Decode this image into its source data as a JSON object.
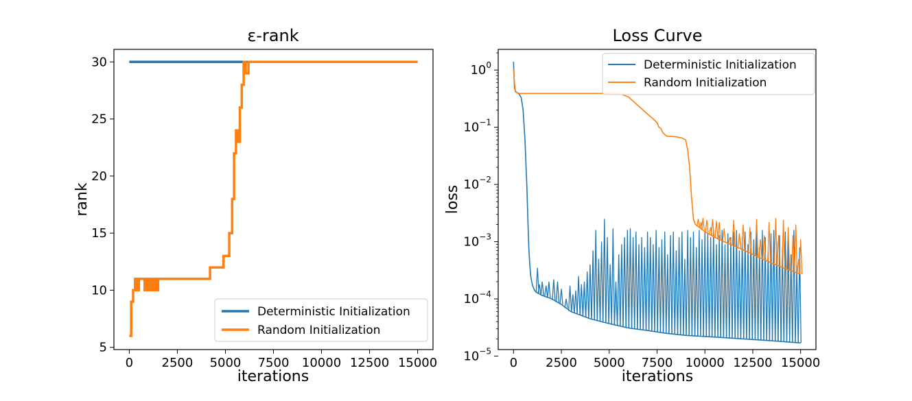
{
  "chart_data": [
    {
      "type": "line",
      "title": "ε-rank",
      "xlabel": "iterations",
      "ylabel": "rank",
      "xlim": [
        -800,
        15800
      ],
      "ylim": [
        4.8,
        31.1
      ],
      "xticks": [
        0,
        2500,
        5000,
        7500,
        10000,
        12500,
        15000
      ],
      "xtick_labels": [
        "0",
        "2500",
        "5000",
        "7500",
        "10000",
        "12500",
        "15000"
      ],
      "yticks": [
        5,
        10,
        15,
        20,
        25,
        30
      ],
      "ytick_labels": [
        "5",
        "10",
        "15",
        "20",
        "25",
        "30"
      ],
      "legend_position": "lower-right",
      "series": [
        {
          "name": "Deterministic Initialization",
          "color": "#1f77b4",
          "x": [
            0,
            15000
          ],
          "y": [
            30,
            30
          ]
        },
        {
          "name": "Random Initialization",
          "color": "#ff7f0e",
          "x": [
            0,
            100,
            100,
            200,
            200,
            300,
            300,
            400,
            400,
            500,
            500,
            800,
            800,
            900,
            900,
            1000,
            1000,
            1100,
            1100,
            1200,
            1200,
            1300,
            1300,
            1400,
            1400,
            1500,
            1500,
            1600,
            1600,
            4200,
            4200,
            4300,
            4300,
            4900,
            4900,
            5200,
            5200,
            5350,
            5350,
            5450,
            5450,
            5550,
            5550,
            5650,
            5650,
            5750,
            5750,
            5850,
            5850,
            5950,
            5950,
            6050,
            6050,
            6200,
            6200,
            15000
          ],
          "y": [
            6,
            6,
            9,
            9,
            10,
            10,
            11,
            11,
            10,
            10,
            11,
            11,
            10,
            10,
            11,
            11,
            10,
            10,
            11,
            11,
            10,
            10,
            11,
            11,
            10,
            10,
            11,
            11,
            11,
            11,
            12,
            12,
            12,
            12,
            13,
            13,
            15,
            15,
            18,
            18,
            22,
            22,
            24,
            24,
            23,
            23,
            26,
            26,
            28,
            28,
            30,
            30,
            29,
            29,
            30,
            30
          ]
        }
      ]
    },
    {
      "type": "line",
      "title": "Loss Curve",
      "xlabel": "iterations",
      "ylabel": "loss",
      "yscale": "log",
      "xlim": [
        -800,
        15800
      ],
      "ylim": [
        1.3e-05,
        2.3
      ],
      "xticks": [
        0,
        2500,
        5000,
        7500,
        10000,
        12500,
        15000
      ],
      "xtick_labels": [
        "0",
        "2500",
        "5000",
        "7500",
        "10000",
        "12500",
        "15000"
      ],
      "yticks": [
        1e-05,
        0.0001,
        0.001,
        0.01,
        0.1,
        1
      ],
      "ytick_labels": [
        {
          "base": "10",
          "exp": "−5"
        },
        {
          "base": "10",
          "exp": "−4"
        },
        {
          "base": "10",
          "exp": "−3"
        },
        {
          "base": "10",
          "exp": "−2"
        },
        {
          "base": "10",
          "exp": "−1"
        },
        {
          "base": "10",
          "exp": "0"
        }
      ],
      "legend_position": "top-right",
      "series": [
        {
          "name": "Deterministic Initialization",
          "color": "#1f77b4",
          "x": [
            0,
            50,
            100,
            200,
            300,
            400,
            500,
            600,
            700,
            750,
            800,
            850,
            900,
            950,
            1000,
            1100,
            1200,
            1500,
            2000,
            2500,
            3000,
            4000,
            5000,
            6000,
            7000,
            8000,
            9000,
            10000,
            11000,
            12000,
            13000,
            14000,
            15000
          ],
          "y": [
            1.4,
            0.5,
            0.42,
            0.4,
            0.38,
            0.33,
            0.2,
            0.06,
            0.009,
            0.0025,
            0.0008,
            0.0004,
            0.00025,
            0.0002,
            0.00017,
            0.00014,
            0.00013,
            0.000115,
            0.0001,
            8e-05,
            6e-05,
            4.5e-05,
            3.7e-05,
            3.1e-05,
            2.8e-05,
            2.5e-05,
            2.3e-05,
            2.2e-05,
            2.1e-05,
            2e-05,
            1.9e-05,
            1.8e-05,
            1.7e-05
          ],
          "spikes": [
            [
              1250,
              0.00035
            ],
            [
              1350,
              0.00018
            ],
            [
              1500,
              0.0002
            ],
            [
              1700,
              0.00017
            ],
            [
              1850,
              0.0002
            ],
            [
              2100,
              0.00022
            ],
            [
              2300,
              0.0002
            ],
            [
              2500,
              0.00015
            ],
            [
              2750,
              0.0001
            ],
            [
              2950,
              0.00017
            ],
            [
              3100,
              0.00012
            ],
            [
              3250,
              0.00014
            ],
            [
              3400,
              0.00025
            ],
            [
              3550,
              0.00018
            ],
            [
              3700,
              0.0002
            ],
            [
              3850,
              0.0003
            ],
            [
              4000,
              0.0004
            ],
            [
              4150,
              0.0007
            ],
            [
              4300,
              0.0016
            ],
            [
              4450,
              0.0005
            ],
            [
              4600,
              0.001
            ],
            [
              4750,
              0.0025
            ],
            [
              4900,
              0.0012
            ],
            [
              5050,
              0.0004
            ],
            [
              5200,
              0.0017
            ],
            [
              5350,
              0.0002
            ],
            [
              5500,
              0.0006
            ],
            [
              5650,
              0.0009
            ],
            [
              5800,
              0.0012
            ],
            [
              5950,
              0.0016
            ],
            [
              6100,
              0.0017
            ],
            [
              6250,
              0.0012
            ],
            [
              6400,
              0.0015
            ],
            [
              6550,
              0.0009
            ],
            [
              6700,
              0.0012
            ],
            [
              6850,
              0.0008
            ],
            [
              7000,
              0.0015
            ],
            [
              7150,
              0.0012
            ],
            [
              7300,
              0.0009
            ],
            [
              7450,
              0.0016
            ],
            [
              7600,
              0.0008
            ],
            [
              7750,
              0.0011
            ],
            [
              7900,
              0.0015
            ],
            [
              8050,
              0.0006
            ],
            [
              8200,
              0.0013
            ],
            [
              8350,
              0.0015
            ],
            [
              8500,
              0.0007
            ],
            [
              8650,
              0.0012
            ],
            [
              8800,
              0.0015
            ],
            [
              8950,
              0.0005
            ],
            [
              9100,
              0.0016
            ],
            [
              9250,
              0.0012
            ],
            [
              9400,
              0.0015
            ],
            [
              9550,
              0.0008
            ],
            [
              9700,
              0.0016
            ],
            [
              9850,
              0.0011
            ],
            [
              10000,
              0.0015
            ],
            [
              10150,
              0.0014
            ],
            [
              10300,
              0.0012
            ],
            [
              10450,
              0.0016
            ],
            [
              10600,
              0.0009
            ],
            [
              10750,
              0.0013
            ],
            [
              10900,
              0.0016
            ],
            [
              11050,
              0.0009
            ],
            [
              11200,
              0.0014
            ],
            [
              11350,
              0.0012
            ],
            [
              11500,
              0.0015
            ],
            [
              11650,
              0.0016
            ],
            [
              11800,
              0.0007
            ],
            [
              11950,
              0.0012
            ],
            [
              12100,
              0.0015
            ],
            [
              12250,
              0.0009
            ],
            [
              12400,
              0.0015
            ],
            [
              12550,
              0.0011
            ],
            [
              12700,
              0.0016
            ],
            [
              12850,
              0.0008
            ],
            [
              13000,
              0.0016
            ],
            [
              13150,
              0.0012
            ],
            [
              13300,
              0.0007
            ],
            [
              13450,
              0.0014
            ],
            [
              13600,
              0.0016
            ],
            [
              13750,
              0.001
            ],
            [
              13900,
              0.0013
            ],
            [
              14050,
              0.0008
            ],
            [
              14200,
              0.0015
            ],
            [
              14350,
              0.0011
            ],
            [
              14500,
              0.0006
            ],
            [
              14650,
              0.0016
            ],
            [
              14800,
              0.0004
            ],
            [
              14950,
              0.0008
            ]
          ]
        },
        {
          "name": "Random Initialization",
          "color": "#ff7f0e",
          "x": [
            0,
            50,
            100,
            200,
            300,
            500,
            1000,
            2000,
            3000,
            4000,
            5000,
            5500,
            6000,
            6500,
            7000,
            7300,
            7500,
            7600,
            7700,
            7800,
            8000,
            8500,
            8800,
            9000,
            9100,
            9200,
            9300,
            9400,
            9500,
            9600,
            10000,
            10500,
            11000,
            11500,
            12000,
            12500,
            13000,
            13500,
            14000,
            14500,
            15000
          ],
          "y": [
            1.05,
            0.6,
            0.43,
            0.4,
            0.39,
            0.39,
            0.39,
            0.39,
            0.39,
            0.39,
            0.39,
            0.39,
            0.34,
            0.24,
            0.17,
            0.14,
            0.12,
            0.1,
            0.095,
            0.08,
            0.07,
            0.068,
            0.065,
            0.06,
            0.04,
            0.02,
            0.006,
            0.0025,
            0.002,
            0.0019,
            0.0015,
            0.0012,
            0.001,
            0.00085,
            0.00072,
            0.0006,
            0.0005,
            0.00042,
            0.00036,
            0.00031,
            0.00027
          ],
          "spikes": [
            [
              9650,
              0.0025
            ],
            [
              9800,
              0.0022
            ],
            [
              9900,
              0.0026
            ],
            [
              10100,
              0.0024
            ],
            [
              10300,
              0.0018
            ],
            [
              10400,
              0.0025
            ],
            [
              10600,
              0.0023
            ],
            [
              10750,
              0.0022
            ],
            [
              11000,
              0.0017
            ],
            [
              11300,
              0.0012
            ],
            [
              11500,
              0.0024
            ],
            [
              11800,
              0.0014
            ],
            [
              12000,
              0.002
            ],
            [
              12350,
              0.0018
            ],
            [
              12700,
              0.0025
            ],
            [
              12900,
              0.0011
            ],
            [
              13100,
              0.0013
            ],
            [
              13350,
              0.0022
            ],
            [
              13700,
              0.0026
            ],
            [
              13850,
              0.0013
            ],
            [
              14100,
              0.0024
            ],
            [
              14350,
              0.0018
            ],
            [
              14600,
              0.0013
            ],
            [
              14750,
              0.002
            ],
            [
              14900,
              0.0005
            ],
            [
              15000,
              0.0011
            ]
          ]
        }
      ]
    }
  ]
}
